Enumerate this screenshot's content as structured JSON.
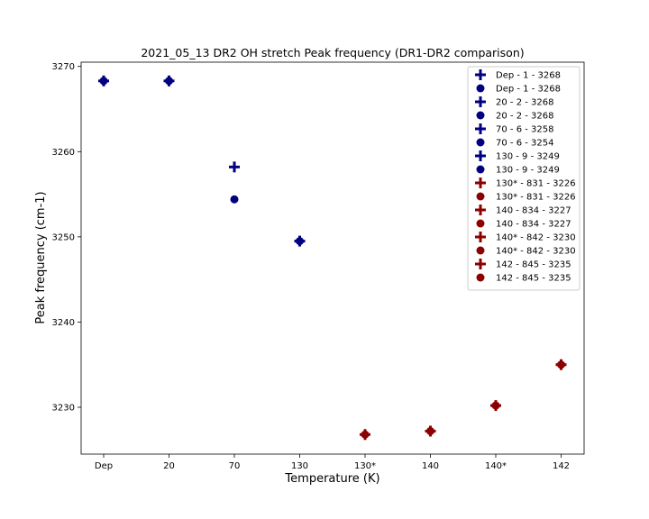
{
  "chart_data": {
    "type": "scatter",
    "title": "2021_05_13 DR2 OH stretch Peak frequency (DR1-DR2 comparison)",
    "xlabel": "Temperature (K)",
    "ylabel": "Peak frequency (cm-1)",
    "categories": [
      "Dep",
      "20",
      "70",
      "130",
      "130*",
      "140",
      "140*",
      "142"
    ],
    "ylim": [
      3224.5,
      3270.5
    ],
    "yticks": [
      3230,
      3240,
      3250,
      3260,
      3270
    ],
    "grid": false,
    "legend_position": "top-right",
    "colors": {
      "blue": "#000080",
      "red": "#8b0000"
    },
    "series": [
      {
        "name": "Dep - 1 - 3268",
        "marker": "plus",
        "color": "#000080",
        "x": "Dep",
        "y": 3268.3
      },
      {
        "name": "Dep - 1 - 3268",
        "marker": "circle",
        "color": "#000080",
        "x": "Dep",
        "y": 3268.3
      },
      {
        "name": "20 - 2 - 3268",
        "marker": "plus",
        "color": "#000080",
        "x": "20",
        "y": 3268.3
      },
      {
        "name": "20 - 2 - 3268",
        "marker": "circle",
        "color": "#000080",
        "x": "20",
        "y": 3268.3
      },
      {
        "name": "70 - 6 - 3258",
        "marker": "plus",
        "color": "#000080",
        "x": "70",
        "y": 3258.2
      },
      {
        "name": "70 - 6 - 3254",
        "marker": "circle",
        "color": "#000080",
        "x": "70",
        "y": 3254.4
      },
      {
        "name": "130 - 9 - 3249",
        "marker": "plus",
        "color": "#000080",
        "x": "130",
        "y": 3249.5
      },
      {
        "name": "130 - 9 - 3249",
        "marker": "circle",
        "color": "#000080",
        "x": "130",
        "y": 3249.5
      },
      {
        "name": "130* - 831 - 3226",
        "marker": "plus",
        "color": "#8b0000",
        "x": "130*",
        "y": 3226.8
      },
      {
        "name": "130* - 831 - 3226",
        "marker": "circle",
        "color": "#8b0000",
        "x": "130*",
        "y": 3226.8
      },
      {
        "name": "140 - 834 - 3227",
        "marker": "plus",
        "color": "#8b0000",
        "x": "140",
        "y": 3227.2
      },
      {
        "name": "140 - 834 - 3227",
        "marker": "circle",
        "color": "#8b0000",
        "x": "140",
        "y": 3227.2
      },
      {
        "name": "140* - 842 - 3230",
        "marker": "plus",
        "color": "#8b0000",
        "x": "140*",
        "y": 3230.2
      },
      {
        "name": "140* - 842 - 3230",
        "marker": "circle",
        "color": "#8b0000",
        "x": "140*",
        "y": 3230.2
      },
      {
        "name": "142 - 845 - 3235",
        "marker": "plus",
        "color": "#8b0000",
        "x": "142",
        "y": 3235.0
      },
      {
        "name": "142 - 845 - 3235",
        "marker": "circle",
        "color": "#8b0000",
        "x": "142",
        "y": 3235.0
      }
    ]
  }
}
